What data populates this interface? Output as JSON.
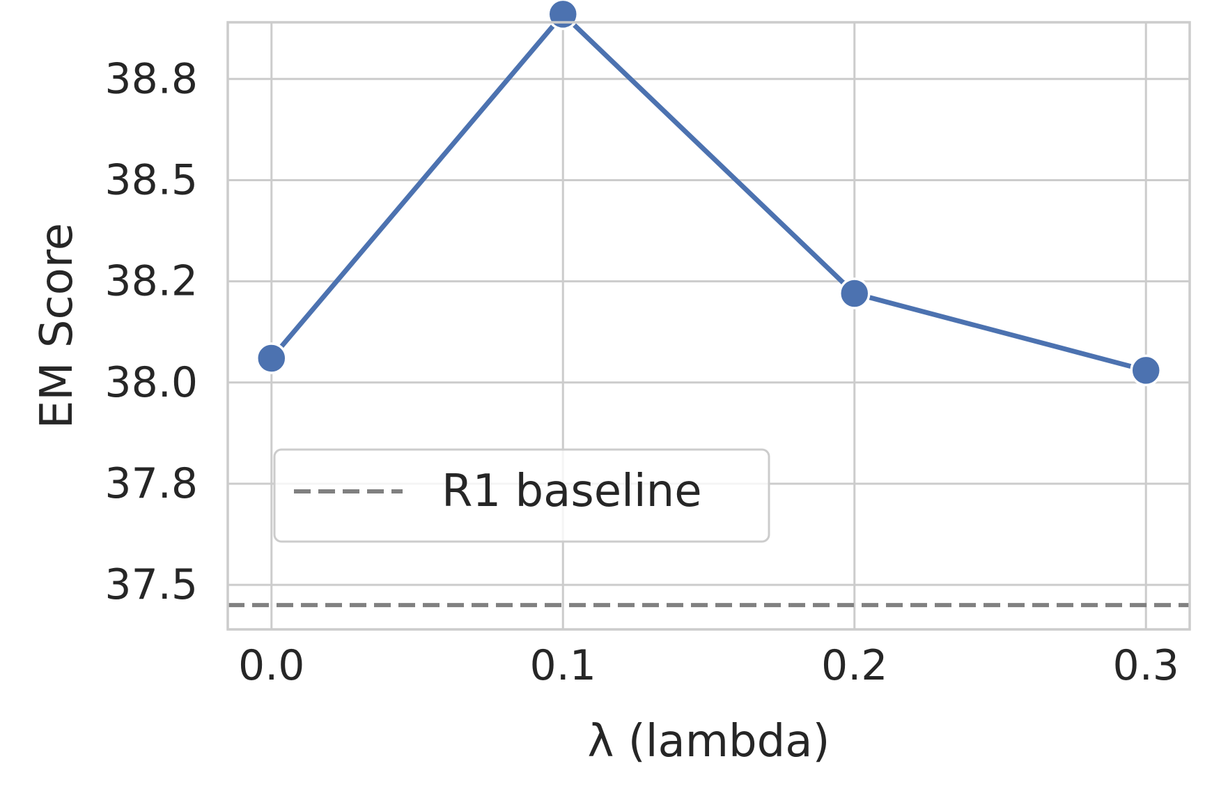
{
  "chart_data": {
    "type": "line",
    "x": [
      0.0,
      0.1,
      0.2,
      0.3
    ],
    "series": [
      {
        "values": [
          38.06,
          38.91,
          38.22,
          38.03
        ],
        "color": "#4c72b0",
        "marker": "circle"
      }
    ],
    "baseline": {
      "name": "R1 baseline",
      "value": 37.45,
      "color": "#808080",
      "style": "dashed"
    },
    "xlabel": "λ (lambda)",
    "ylabel": "EM Score",
    "xticks": [
      0.0,
      0.1,
      0.2,
      0.3
    ],
    "xtick_labels": [
      "0.0",
      "0.1",
      "0.2",
      "0.3"
    ],
    "yticks": [
      37.5,
      37.75,
      38.0,
      38.25,
      38.5,
      38.75
    ],
    "ytick_labels": [
      "37.5",
      "37.8",
      "38.0",
      "38.2",
      "38.5",
      "38.8"
    ],
    "xlim": [
      -0.015,
      0.315
    ],
    "ylim": [
      37.39,
      38.89
    ],
    "grid": true,
    "legend_position": "lower-left"
  }
}
